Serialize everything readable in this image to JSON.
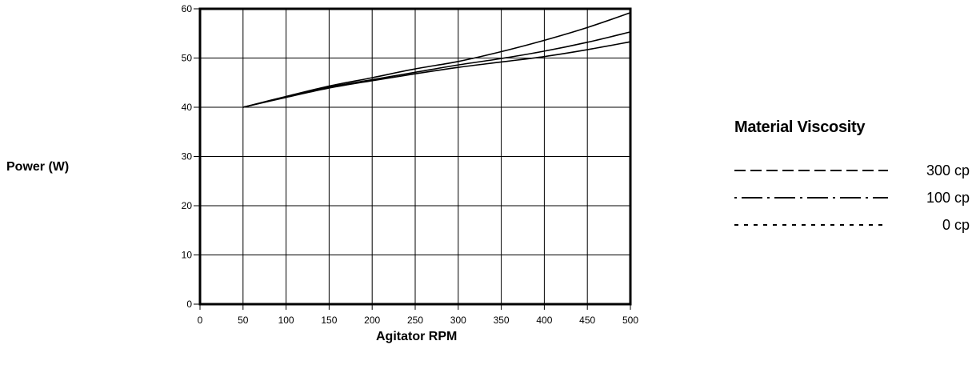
{
  "chart_data": {
    "type": "line",
    "title": "",
    "xlabel": "Agitator RPM",
    "ylabel": "Power (W)",
    "xlim": [
      0,
      500
    ],
    "ylim": [
      0,
      60
    ],
    "x_ticks": [
      0,
      50,
      100,
      150,
      200,
      250,
      300,
      350,
      400,
      450,
      500
    ],
    "y_ticks": [
      0,
      10,
      20,
      30,
      40,
      50,
      60
    ],
    "grid": true,
    "legend_title": "Material Viscosity",
    "legend_position": "right",
    "x": [
      50,
      100,
      150,
      200,
      250,
      300,
      350,
      400,
      450,
      500
    ],
    "series": [
      {
        "name": "300 cp",
        "style": "long-dash",
        "values": [
          40.0,
          42.2,
          44.3,
          46.0,
          47.8,
          49.3,
          51.3,
          53.6,
          56.2,
          59.2
        ]
      },
      {
        "name": "100 cp",
        "style": "dash-dot",
        "values": [
          40.0,
          42.1,
          44.1,
          45.6,
          47.1,
          48.6,
          49.9,
          51.4,
          53.2,
          55.3
        ]
      },
      {
        "name": "0 cp",
        "style": "short-dash",
        "values": [
          40.0,
          42.0,
          43.9,
          45.4,
          46.8,
          48.1,
          49.2,
          50.3,
          51.7,
          53.3
        ]
      }
    ]
  }
}
